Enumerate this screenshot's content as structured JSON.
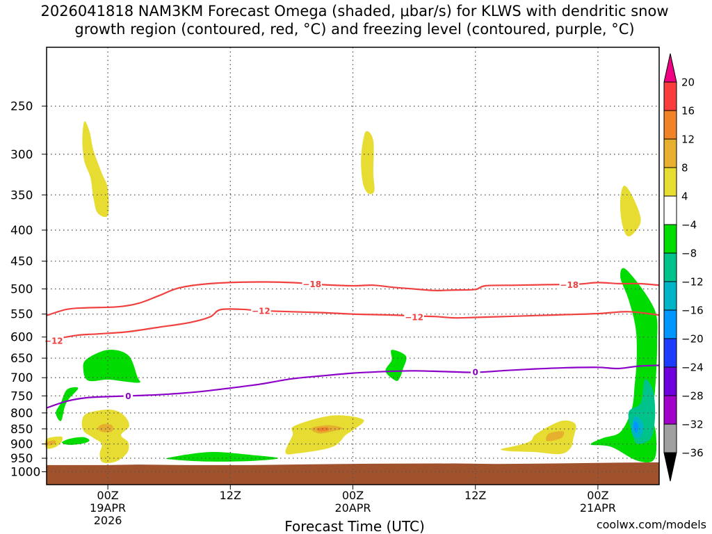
{
  "colors": {
    "yellow": "#e6dc32",
    "orange_light": "#e6af2d",
    "orange": "#f08228",
    "red": "#fa3c3c",
    "magenta": "#f00082",
    "green": "#00dc00",
    "green_teal": "#00c38b",
    "cyan": "#00b4c8",
    "blue": "#0096ff",
    "blue_dark": "#1e3cff",
    "purple": "#6e00dc",
    "purple_light": "#a000c8",
    "gray": "#a0a0a0",
    "black": "#000000",
    "ground": "#a0522d",
    "dgz_line": "#f04040",
    "freezing_line": "#8c00c8",
    "credit": "#e03030"
  },
  "chart_data": {
    "type": "time-height cross-section (omega shaded, temperature contours)",
    "title_line1": "2026041818 NAM3KM Forecast Omega (shaded, μbar/s) for KLWS with dendritic snow",
    "title_line2": "growth region (contoured, red, °C) and freezing level (contoured, purple, °C)",
    "xlabel": "Forecast Time (UTC)",
    "credit": "coolwx.com/models",
    "x_range_hours": [
      -6,
      54
    ],
    "x_ticks": [
      {
        "hour": 0,
        "lines": [
          "00Z",
          "19APR",
          "2026"
        ]
      },
      {
        "hour": 12,
        "lines": [
          "12Z"
        ]
      },
      {
        "hour": 24,
        "lines": [
          "00Z",
          "20APR"
        ]
      },
      {
        "hour": 36,
        "lines": [
          "12Z"
        ]
      },
      {
        "hour": 48,
        "lines": [
          "00Z",
          "21APR"
        ]
      }
    ],
    "y_axis": "pressure (hPa), log scale, inverted",
    "y_ticks": [
      250,
      300,
      350,
      400,
      450,
      500,
      550,
      600,
      650,
      700,
      750,
      800,
      850,
      900,
      950,
      1000
    ],
    "y_range": [
      200,
      1050
    ],
    "colorbar_levels": [
      -36,
      -32,
      -28,
      -24,
      -20,
      -16,
      -12,
      -8,
      -4,
      4,
      8,
      12,
      16,
      20
    ],
    "colorbar_labels": [
      "20",
      "16",
      "12",
      "8",
      "4",
      "−4",
      "−8",
      "−12",
      "−16",
      "−20",
      "−24",
      "−28",
      "−32",
      "−36"
    ],
    "surface_pressure_hpa": [
      [
        -6,
        975
      ],
      [
        0,
        975
      ],
      [
        3,
        973
      ],
      [
        8,
        975
      ],
      [
        14,
        975
      ],
      [
        20,
        972
      ],
      [
        26,
        970
      ],
      [
        34,
        969
      ],
      [
        38,
        971
      ],
      [
        44,
        969
      ],
      [
        50,
        966
      ],
      [
        54,
        965
      ]
    ],
    "contours": [
      {
        "name": "-18C",
        "label": "−18",
        "label_hour": 20,
        "color_key": "dgz_line",
        "points": [
          [
            -6,
            553
          ],
          [
            -4,
            540
          ],
          [
            -2,
            537
          ],
          [
            1,
            535
          ],
          [
            3,
            528
          ],
          [
            5,
            513
          ],
          [
            7,
            498
          ],
          [
            10,
            490
          ],
          [
            14,
            487
          ],
          [
            18,
            488
          ],
          [
            21,
            492
          ],
          [
            24,
            494
          ],
          [
            26,
            493
          ],
          [
            28,
            497
          ],
          [
            30,
            500
          ],
          [
            32,
            503
          ],
          [
            34,
            502
          ],
          [
            36,
            501
          ],
          [
            37,
            494
          ],
          [
            40,
            493
          ],
          [
            43,
            492
          ],
          [
            46,
            491
          ],
          [
            48,
            488
          ],
          [
            50,
            490
          ],
          [
            52,
            490
          ],
          [
            54,
            493
          ]
        ]
      },
      {
        "name": "-12C upper",
        "label": "−12",
        "label_hour": 15,
        "color_key": "dgz_line",
        "points": [
          [
            -6,
            608
          ],
          [
            -3,
            596
          ],
          [
            -1,
            593
          ],
          [
            2,
            588
          ],
          [
            5,
            578
          ],
          [
            8,
            568
          ],
          [
            10,
            556
          ],
          [
            11,
            541
          ],
          [
            13,
            540
          ],
          [
            15,
            543
          ],
          [
            18,
            545
          ],
          [
            21,
            547
          ],
          [
            24,
            550
          ],
          [
            28,
            552
          ],
          [
            30,
            554
          ],
          [
            32,
            555
          ],
          [
            34,
            558
          ],
          [
            36,
            557
          ],
          [
            39,
            555
          ],
          [
            42,
            553
          ],
          [
            45,
            551
          ],
          [
            48,
            549
          ],
          [
            51,
            545
          ],
          [
            54,
            552
          ]
        ]
      },
      {
        "name": "0C freezing level",
        "label": "0",
        "label_hour": 2,
        "color_key": "freezing_line",
        "points": [
          [
            -6,
            785
          ],
          [
            -4,
            765
          ],
          [
            -2,
            755
          ],
          [
            0,
            752
          ],
          [
            3,
            749
          ],
          [
            6,
            745
          ],
          [
            9,
            738
          ],
          [
            12,
            728
          ],
          [
            15,
            717
          ],
          [
            18,
            703
          ],
          [
            21,
            695
          ],
          [
            24,
            688
          ],
          [
            27,
            684
          ],
          [
            30,
            682
          ],
          [
            33,
            684
          ],
          [
            36,
            686
          ],
          [
            39,
            681
          ],
          [
            42,
            677
          ],
          [
            45,
            674
          ],
          [
            48,
            673
          ],
          [
            50,
            676
          ],
          [
            52,
            670
          ],
          [
            54,
            668
          ]
        ]
      }
    ],
    "extra_labels": [
      {
        "text": "−12",
        "hour": -5.3,
        "pressure": 608,
        "color_key": "dgz_line"
      },
      {
        "text": "−12",
        "hour": 30,
        "pressure": 556,
        "color_key": "dgz_line"
      },
      {
        "text": "−18",
        "hour": 45.2,
        "pressure": 492,
        "color_key": "dgz_line"
      },
      {
        "text": "0",
        "hour": 36,
        "pressure": 685,
        "color_key": "freezing_line"
      }
    ],
    "shaded_regions": [
      {
        "color_key": "yellow",
        "points": [
          [
            -2.3,
            265
          ],
          [
            -1.8,
            275
          ],
          [
            -1.4,
            296
          ],
          [
            -0.6,
            322
          ],
          [
            0,
            342
          ],
          [
            0,
            378
          ],
          [
            -1,
            375
          ],
          [
            -1.4,
            355
          ],
          [
            -1.7,
            328
          ],
          [
            -2.3,
            308
          ],
          [
            -2.5,
            285
          ]
        ]
      },
      {
        "color_key": "yellow",
        "points": [
          [
            25.3,
            275
          ],
          [
            26.0,
            285
          ],
          [
            26.0,
            322
          ],
          [
            26.1,
            345
          ],
          [
            25.5,
            348
          ],
          [
            25.0,
            336
          ],
          [
            24.8,
            312
          ],
          [
            24.9,
            292
          ]
        ]
      },
      {
        "color_key": "yellow",
        "points": [
          [
            50.6,
            338
          ],
          [
            51.5,
            355
          ],
          [
            52.2,
            385
          ],
          [
            51.5,
            405
          ],
          [
            50.8,
            408
          ],
          [
            50.3,
            385
          ],
          [
            50.2,
            355
          ]
        ]
      },
      {
        "color_key": "green",
        "points": [
          [
            -2.1,
            653
          ],
          [
            0,
            630
          ],
          [
            2,
            643
          ],
          [
            2.9,
            698
          ],
          [
            3.1,
            713
          ],
          [
            1.6,
            710
          ],
          [
            0,
            705
          ],
          [
            -1.9,
            708
          ],
          [
            -2.4,
            680
          ]
        ]
      },
      {
        "color_key": "green",
        "points": [
          [
            -4.0,
            732
          ],
          [
            -2.9,
            728
          ],
          [
            -3.8,
            758
          ],
          [
            -4.2,
            780
          ],
          [
            -4.6,
            825
          ],
          [
            -5.1,
            800
          ],
          [
            -4.6,
            770
          ]
        ]
      },
      {
        "color_key": "green",
        "points": [
          [
            -3.7,
            882
          ],
          [
            -2.4,
            877
          ],
          [
            -1.8,
            888
          ],
          [
            -2.4,
            898
          ],
          [
            -3.8,
            903
          ],
          [
            -4.5,
            895
          ]
        ]
      },
      {
        "color_key": "green",
        "points": [
          [
            6.0,
            948
          ],
          [
            10,
            928
          ],
          [
            14,
            938
          ],
          [
            16.7,
            950
          ],
          [
            14,
            960
          ],
          [
            10,
            962
          ],
          [
            6.4,
            955
          ]
        ]
      },
      {
        "color_key": "green",
        "points": [
          [
            27.8,
            630
          ],
          [
            29.2,
            645
          ],
          [
            28.9,
            678
          ],
          [
            28.6,
            700
          ],
          [
            28.2,
            708
          ],
          [
            27.2,
            683
          ],
          [
            27.8,
            655
          ]
        ]
      },
      {
        "color_key": "green",
        "points": [
          [
            50.8,
            465
          ],
          [
            53.5,
            538
          ],
          [
            53.8,
            612
          ],
          [
            53.6,
            735
          ],
          [
            53.3,
            800
          ],
          [
            53.7,
            870
          ],
          [
            53.5,
            955
          ],
          [
            51.8,
            958
          ],
          [
            49.3,
            910
          ],
          [
            47.3,
            902
          ],
          [
            48.5,
            880
          ],
          [
            50.2,
            860
          ],
          [
            51.3,
            790
          ],
          [
            51.6,
            720
          ],
          [
            51.8,
            650
          ],
          [
            51.7,
            580
          ],
          [
            51.0,
            520
          ],
          [
            50.2,
            478
          ]
        ]
      },
      {
        "color_key": "green_teal",
        "points": [
          [
            52.6,
            705
          ],
          [
            53.4,
            735
          ],
          [
            53.6,
            810
          ],
          [
            53.2,
            880
          ],
          [
            52.0,
            900
          ],
          [
            51.5,
            880
          ],
          [
            51.0,
            800
          ],
          [
            52.2,
            770
          ]
        ]
      },
      {
        "color_key": "cyan",
        "points": [
          [
            51.7,
            810
          ],
          [
            52.4,
            835
          ],
          [
            52.3,
            870
          ],
          [
            51.8,
            880
          ],
          [
            51.3,
            860
          ],
          [
            51.4,
            830
          ]
        ]
      },
      {
        "color_key": "blue",
        "points": [
          [
            51.6,
            825
          ],
          [
            52.0,
            840
          ],
          [
            51.8,
            862
          ],
          [
            51.5,
            848
          ]
        ]
      },
      {
        "color_key": "yellow",
        "points": [
          [
            -1.9,
            800
          ],
          [
            0.2,
            790
          ],
          [
            1.5,
            805
          ],
          [
            2.1,
            840
          ],
          [
            1.3,
            870
          ],
          [
            2.0,
            895
          ],
          [
            1.9,
            930
          ],
          [
            0.8,
            962
          ],
          [
            -0.5,
            965
          ],
          [
            -0.8,
            935
          ],
          [
            -0.6,
            900
          ],
          [
            -1.5,
            878
          ],
          [
            -2.4,
            855
          ],
          [
            -2.5,
            820
          ]
        ]
      },
      {
        "color_key": "orange_light",
        "points": [
          [
            -0.5,
            835
          ],
          [
            0.4,
            838
          ],
          [
            0.4,
            858
          ],
          [
            -0.5,
            860
          ],
          [
            -1.0,
            848
          ]
        ]
      },
      {
        "color_key": "yellow",
        "points": [
          [
            -6,
            883
          ],
          [
            -4.6,
            875
          ],
          [
            -4.5,
            890
          ],
          [
            -5.1,
            910
          ],
          [
            -6,
            915
          ]
        ]
      },
      {
        "color_key": "orange_light",
        "points": [
          [
            -6,
            893
          ],
          [
            -5.2,
            888
          ],
          [
            -5.2,
            900
          ],
          [
            -6,
            905
          ]
        ]
      },
      {
        "color_key": "yellow",
        "points": [
          [
            18.3,
            840
          ],
          [
            22,
            808
          ],
          [
            25.0,
            820
          ],
          [
            24.2,
            850
          ],
          [
            23.3,
            870
          ],
          [
            22,
            910
          ],
          [
            18.7,
            932
          ],
          [
            17.4,
            930
          ],
          [
            18.1,
            870
          ]
        ]
      },
      {
        "color_key": "orange_light",
        "points": [
          [
            20.1,
            845
          ],
          [
            21.7,
            838
          ],
          [
            23.0,
            848
          ],
          [
            22.0,
            858
          ],
          [
            20.8,
            865
          ],
          [
            20.0,
            855
          ]
        ]
      },
      {
        "color_key": "orange",
        "points": [
          [
            20.5,
            848
          ],
          [
            21.5,
            845
          ],
          [
            21.6,
            855
          ],
          [
            20.7,
            858
          ]
        ]
      },
      {
        "color_key": "yellow",
        "points": [
          [
            42.0,
            865
          ],
          [
            44.4,
            825
          ],
          [
            45.8,
            835
          ],
          [
            45.6,
            880
          ],
          [
            45.3,
            915
          ],
          [
            44.3,
            935
          ],
          [
            41.8,
            928
          ],
          [
            39.4,
            925
          ],
          [
            38.5,
            918
          ],
          [
            40.1,
            905
          ],
          [
            41.4,
            890
          ]
        ]
      },
      {
        "color_key": "orange_light",
        "points": [
          [
            43.2,
            865
          ],
          [
            44.6,
            858
          ],
          [
            44.4,
            880
          ],
          [
            43.0,
            890
          ]
        ]
      }
    ]
  }
}
